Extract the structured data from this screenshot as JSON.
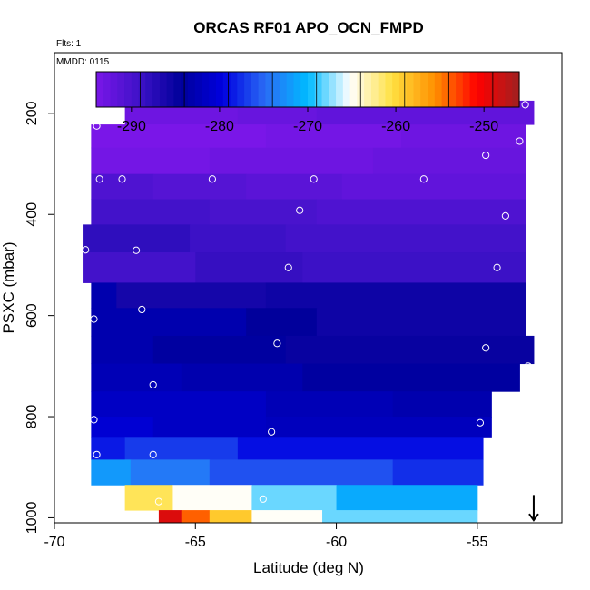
{
  "chart_data": {
    "type": "heatmap",
    "title": "ORCAS RF01 APO_OCN_FMPD",
    "notes": {
      "flights": "Flts: 1",
      "date": "MMDD: 0115"
    },
    "xlabel": "Latitude (deg N)",
    "ylabel": "PSXC (mbar)",
    "xlim": [
      -70,
      -52
    ],
    "ylim": [
      1010,
      80
    ],
    "y_reversed": true,
    "xticks": [
      -70,
      -65,
      -60,
      -55
    ],
    "yticks": [
      200,
      400,
      600,
      800,
      1000
    ],
    "colorbar": {
      "min": -294,
      "max": -246,
      "ticks": [
        -290,
        -280,
        -270,
        -260,
        -250
      ],
      "colors": [
        "#7a16e8",
        "#3f12c8",
        "#00009a",
        "#0000e0",
        "#2a6cf5",
        "#00baff",
        "#ffffff",
        "#ffe040",
        "#ff9000",
        "#ff0000",
        "#a02020"
      ]
    },
    "rows": [
      {
        "p_top": 175,
        "p_bot": 222,
        "x_start": -67.5,
        "x_end": -53.0,
        "bands": [
          {
            "x0": -67.5,
            "x1": -63.5,
            "v": -293
          },
          {
            "x0": -63.5,
            "x1": -60.7,
            "v": -292.5
          },
          {
            "x0": -60.7,
            "x1": -53.0,
            "v": -292
          }
        ]
      },
      {
        "p_top": 222,
        "p_bot": 268,
        "x_start": -68.7,
        "x_end": -53.3,
        "bands": [
          {
            "x0": -68.7,
            "x1": -62.5,
            "v": -294
          },
          {
            "x0": -62.5,
            "x1": -57.7,
            "v": -293.5
          },
          {
            "x0": -57.7,
            "x1": -53.3,
            "v": -293
          }
        ]
      },
      {
        "p_top": 268,
        "p_bot": 320,
        "x_start": -68.7,
        "x_end": -53.3,
        "bands": [
          {
            "x0": -68.7,
            "x1": -64.5,
            "v": -293.5
          },
          {
            "x0": -64.5,
            "x1": -58.7,
            "v": -293
          },
          {
            "x0": -58.7,
            "x1": -53.3,
            "v": -292.5
          }
        ]
      },
      {
        "p_top": 320,
        "p_bot": 370,
        "x_start": -68.7,
        "x_end": -53.3,
        "bands": [
          {
            "x0": -68.7,
            "x1": -66.5,
            "v": -290.5
          },
          {
            "x0": -66.5,
            "x1": -63.2,
            "v": -291
          },
          {
            "x0": -63.2,
            "x1": -59.8,
            "v": -291.5
          },
          {
            "x0": -59.8,
            "x1": -53.3,
            "v": -292
          }
        ]
      },
      {
        "p_top": 370,
        "p_bot": 420,
        "x_start": -68.7,
        "x_end": -53.3,
        "bands": [
          {
            "x0": -68.7,
            "x1": -64.5,
            "v": -289.5
          },
          {
            "x0": -64.5,
            "x1": -60.7,
            "v": -290
          },
          {
            "x0": -60.7,
            "x1": -53.3,
            "v": -290.5
          }
        ]
      },
      {
        "p_top": 420,
        "p_bot": 475,
        "x_start": -69.0,
        "x_end": -53.3,
        "bands": [
          {
            "x0": -69.0,
            "x1": -65.2,
            "v": -288
          },
          {
            "x0": -65.2,
            "x1": -61.8,
            "v": -289
          },
          {
            "x0": -61.8,
            "x1": -53.3,
            "v": -289.5
          }
        ]
      },
      {
        "p_top": 475,
        "p_bot": 535,
        "x_start": -69.0,
        "x_end": -53.3,
        "bands": [
          {
            "x0": -69.0,
            "x1": -65.0,
            "v": -289.5
          },
          {
            "x0": -65.0,
            "x1": -61.2,
            "v": -288.5
          },
          {
            "x0": -61.2,
            "x1": -53.3,
            "v": -289
          }
        ]
      },
      {
        "p_top": 535,
        "p_bot": 585,
        "x_start": -68.7,
        "x_end": -53.3,
        "bands": [
          {
            "x0": -68.7,
            "x1": -67.8,
            "v": -283
          },
          {
            "x0": -67.8,
            "x1": -62.5,
            "v": -286
          },
          {
            "x0": -62.5,
            "x1": -53.3,
            "v": -285.5
          }
        ]
      },
      {
        "p_top": 585,
        "p_bot": 640,
        "x_start": -68.7,
        "x_end": -53.3,
        "bands": [
          {
            "x0": -68.7,
            "x1": -63.2,
            "v": -283
          },
          {
            "x0": -63.2,
            "x1": -60.7,
            "v": -284.5
          },
          {
            "x0": -60.7,
            "x1": -53.3,
            "v": -285.5
          }
        ]
      },
      {
        "p_top": 640,
        "p_bot": 695,
        "x_start": -68.7,
        "x_end": -53.0,
        "bands": [
          {
            "x0": -68.7,
            "x1": -66.5,
            "v": -283
          },
          {
            "x0": -66.5,
            "x1": -61.8,
            "v": -284
          },
          {
            "x0": -61.8,
            "x1": -53.0,
            "v": -285
          }
        ]
      },
      {
        "p_top": 695,
        "p_bot": 750,
        "x_start": -68.7,
        "x_end": -53.5,
        "bands": [
          {
            "x0": -68.7,
            "x1": -65.5,
            "v": -282.5
          },
          {
            "x0": -65.5,
            "x1": -61.2,
            "v": -283
          },
          {
            "x0": -61.2,
            "x1": -53.5,
            "v": -284
          }
        ]
      },
      {
        "p_top": 750,
        "p_bot": 800,
        "x_start": -68.7,
        "x_end": -54.5,
        "bands": [
          {
            "x0": -68.7,
            "x1": -62.5,
            "v": -281.5
          },
          {
            "x0": -62.5,
            "x1": -58.0,
            "v": -282.5
          },
          {
            "x0": -58.0,
            "x1": -54.5,
            "v": -283
          }
        ]
      },
      {
        "p_top": 800,
        "p_bot": 840,
        "x_start": -68.7,
        "x_end": -54.5,
        "bands": [
          {
            "x0": -68.7,
            "x1": -66.5,
            "v": -280.5
          },
          {
            "x0": -66.5,
            "x1": -62.5,
            "v": -281.5
          },
          {
            "x0": -62.5,
            "x1": -54.5,
            "v": -282
          }
        ]
      },
      {
        "p_top": 840,
        "p_bot": 885,
        "x_start": -68.7,
        "x_end": -54.8,
        "bands": [
          {
            "x0": -68.7,
            "x1": -67.5,
            "v": -278.5
          },
          {
            "x0": -67.5,
            "x1": -63.5,
            "v": -277
          },
          {
            "x0": -63.5,
            "x1": -54.8,
            "v": -279
          }
        ]
      },
      {
        "p_top": 885,
        "p_bot": 935,
        "x_start": -68.7,
        "x_end": -54.8,
        "bands": [
          {
            "x0": -68.7,
            "x1": -67.3,
            "v": -272
          },
          {
            "x0": -67.3,
            "x1": -64.5,
            "v": -274
          },
          {
            "x0": -64.5,
            "x1": -58.0,
            "v": -276
          },
          {
            "x0": -58.0,
            "x1": -54.8,
            "v": -277.5
          }
        ]
      },
      {
        "p_top": 935,
        "p_bot": 985,
        "x_start": -67.5,
        "x_end": -55.0,
        "bands": [
          {
            "x0": -67.5,
            "x1": -65.8,
            "v": -261
          },
          {
            "x0": -65.8,
            "x1": -63.0,
            "v": -265
          },
          {
            "x0": -63.0,
            "x1": -60.0,
            "v": -268
          },
          {
            "x0": -60.0,
            "x1": -55.0,
            "v": -271
          }
        ]
      },
      {
        "p_top": 985,
        "p_bot": 1010,
        "x_start": -66.3,
        "x_end": -55.0,
        "bands": [
          {
            "x0": -66.3,
            "x1": -65.5,
            "v": -249
          },
          {
            "x0": -65.5,
            "x1": -64.5,
            "v": -254
          },
          {
            "x0": -64.5,
            "x1": -63.0,
            "v": -259
          },
          {
            "x0": -63.0,
            "x1": -60.5,
            "v": -265
          },
          {
            "x0": -60.5,
            "x1": -55.0,
            "v": -268
          }
        ]
      }
    ],
    "points": [
      {
        "x": -67.3,
        "p": 180
      },
      {
        "x": -58.1,
        "p": 180
      },
      {
        "x": -53.3,
        "p": 183
      },
      {
        "x": -68.5,
        "p": 225
      },
      {
        "x": -53.5,
        "p": 255
      },
      {
        "x": -54.7,
        "p": 283
      },
      {
        "x": -68.4,
        "p": 330
      },
      {
        "x": -67.6,
        "p": 330
      },
      {
        "x": -64.4,
        "p": 330
      },
      {
        "x": -60.8,
        "p": 330
      },
      {
        "x": -56.9,
        "p": 330
      },
      {
        "x": -61.3,
        "p": 392
      },
      {
        "x": -54.0,
        "p": 403
      },
      {
        "x": -68.9,
        "p": 470
      },
      {
        "x": -67.1,
        "p": 471
      },
      {
        "x": -61.7,
        "p": 505
      },
      {
        "x": -54.3,
        "p": 505
      },
      {
        "x": -66.9,
        "p": 588
      },
      {
        "x": -68.6,
        "p": 607
      },
      {
        "x": -62.1,
        "p": 655
      },
      {
        "x": -54.7,
        "p": 664
      },
      {
        "x": -53.2,
        "p": 700
      },
      {
        "x": -66.5,
        "p": 737
      },
      {
        "x": -68.6,
        "p": 806
      },
      {
        "x": -54.9,
        "p": 812
      },
      {
        "x": -62.3,
        "p": 830
      },
      {
        "x": -68.5,
        "p": 875
      },
      {
        "x": -66.5,
        "p": 875
      },
      {
        "x": -66.3,
        "p": 968
      },
      {
        "x": -62.6,
        "p": 963
      }
    ],
    "arrow": {
      "x": -53.0,
      "p_from": 955,
      "p_to": 1005
    }
  }
}
